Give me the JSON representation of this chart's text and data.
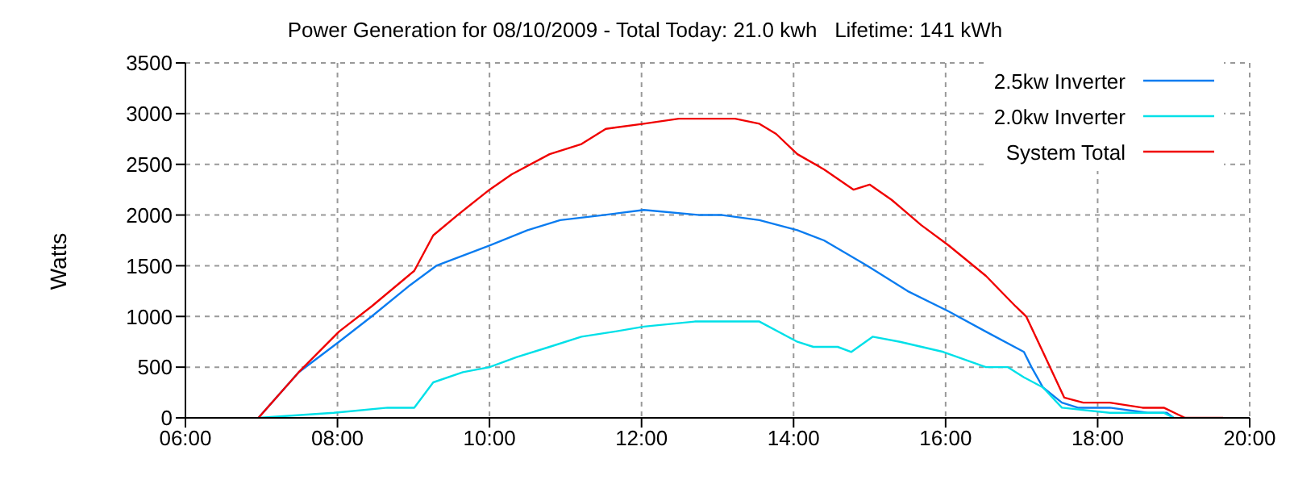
{
  "chart_data": {
    "type": "line",
    "title": "Power Generation for 08/10/2009 - Total Today: 21.0 kwh   Lifetime: 141 kWh",
    "ylabel": "Watts",
    "xlim": [
      6,
      20
    ],
    "xticks": [
      {
        "value": 6,
        "label": "06:00"
      },
      {
        "value": 8,
        "label": "08:00"
      },
      {
        "value": 10,
        "label": "10:00"
      },
      {
        "value": 12,
        "label": "12:00"
      },
      {
        "value": 14,
        "label": "14:00"
      },
      {
        "value": 16,
        "label": "16:00"
      },
      {
        "value": 18,
        "label": "18:00"
      },
      {
        "value": 20,
        "label": "20:00"
      }
    ],
    "ylim": [
      0,
      3500
    ],
    "yticks": [
      0,
      500,
      1000,
      1500,
      2000,
      2500,
      3000,
      3500
    ],
    "grid": true,
    "legend": "top right",
    "marker": "none",
    "line_style": "solid",
    "series": [
      {
        "name": "2.5kw Inverter",
        "color": "#0a7cf0",
        "x": [
          6.96,
          7.49,
          8.02,
          8.45,
          8.94,
          9.3,
          9.65,
          10.0,
          10.5,
          10.93,
          11.5,
          12.03,
          12.77,
          13.06,
          13.55,
          14.05,
          14.4,
          14.97,
          15.5,
          16.04,
          16.53,
          17.03,
          17.13,
          17.28,
          17.53,
          17.74,
          18.16,
          18.66,
          18.91,
          19.0
        ],
        "values": [
          0,
          450,
          750,
          1000,
          1300,
          1500,
          1600,
          1700,
          1850,
          1950,
          2000,
          2050,
          2000,
          2000,
          1950,
          1850,
          1750,
          1500,
          1250,
          1050,
          850,
          650,
          500,
          300,
          150,
          100,
          100,
          50,
          50,
          0
        ]
      },
      {
        "name": "2.0kw Inverter",
        "color": "#00e0e8",
        "x": [
          6.96,
          7.95,
          8.66,
          9.01,
          9.26,
          9.65,
          10.0,
          10.36,
          10.79,
          11.21,
          11.64,
          12.03,
          12.7,
          13.27,
          13.55,
          14.05,
          14.26,
          14.58,
          14.76,
          15.04,
          15.4,
          15.97,
          16.53,
          16.82,
          17.03,
          17.28,
          17.53,
          18.16,
          18.87,
          19.0
        ],
        "values": [
          0,
          50,
          100,
          100,
          350,
          450,
          500,
          600,
          700,
          800,
          850,
          900,
          950,
          950,
          950,
          750,
          700,
          700,
          650,
          800,
          750,
          650,
          500,
          500,
          400,
          300,
          100,
          50,
          50,
          0
        ]
      },
      {
        "name": "System Total",
        "color": "#f00000",
        "x": [
          6.96,
          7.49,
          8.02,
          8.45,
          9.01,
          9.26,
          9.58,
          10.0,
          10.29,
          10.79,
          11.21,
          11.53,
          12.03,
          12.49,
          12.84,
          13.23,
          13.55,
          13.77,
          14.05,
          14.4,
          14.79,
          15.0,
          15.29,
          15.68,
          16.04,
          16.53,
          16.92,
          17.06,
          17.28,
          17.56,
          17.81,
          18.16,
          18.59,
          18.87,
          19.01,
          19.15,
          19.65
        ],
        "values": [
          0,
          450,
          850,
          1100,
          1450,
          1800,
          2000,
          2250,
          2400,
          2600,
          2700,
          2850,
          2900,
          2950,
          2950,
          2950,
          2900,
          2800,
          2600,
          2450,
          2250,
          2300,
          2150,
          1900,
          1700,
          1400,
          1100,
          1000,
          650,
          200,
          150,
          150,
          100,
          100,
          50,
          0,
          0
        ]
      }
    ]
  }
}
